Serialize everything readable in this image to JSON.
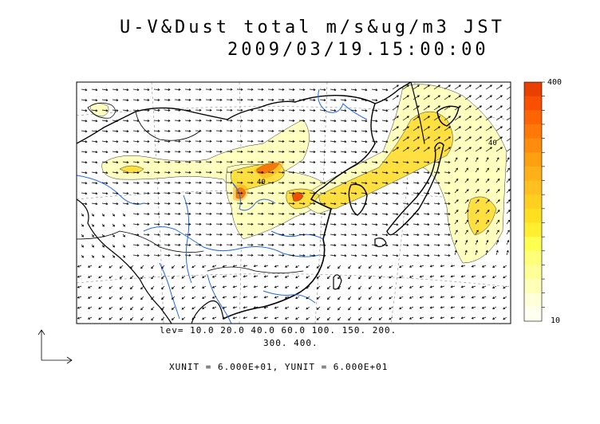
{
  "title": {
    "line1": "U-V&Dust total m/s&ug/m3 JST",
    "line2": "2009/03/19.15:00:00"
  },
  "contour_levels": {
    "line1": "lev= 10.0 20.0 40.0 60.0 100. 150. 200.",
    "line2": "300. 400.",
    "values": [
      10,
      20,
      40,
      60,
      100,
      150,
      200,
      300,
      400
    ]
  },
  "vector_units": "XUNIT = 6.000E+01, YUNIT = 6.000E+01",
  "colorbar": {
    "max_label": "400",
    "min_label": "10",
    "colors": [
      "#fffff0",
      "#ffffd8",
      "#ffffb8",
      "#ffff98",
      "#ffff78",
      "#ffff50",
      "#ffef30",
      "#ffe020",
      "#ffd020",
      "#ffc020",
      "#ffb018",
      "#ffa010",
      "#ff8c0c",
      "#ff7808",
      "#ff6404",
      "#f85000",
      "#e84000"
    ]
  },
  "map_labels": {
    "contour_40_a": "40",
    "contour_40_b": "40"
  },
  "colors": {
    "coast": "#000000",
    "river": "#1e6ae6",
    "grid": "#888888",
    "dust_low": "#ffffc0",
    "dust_mid": "#ffe040",
    "dust_high": "#f05000"
  }
}
